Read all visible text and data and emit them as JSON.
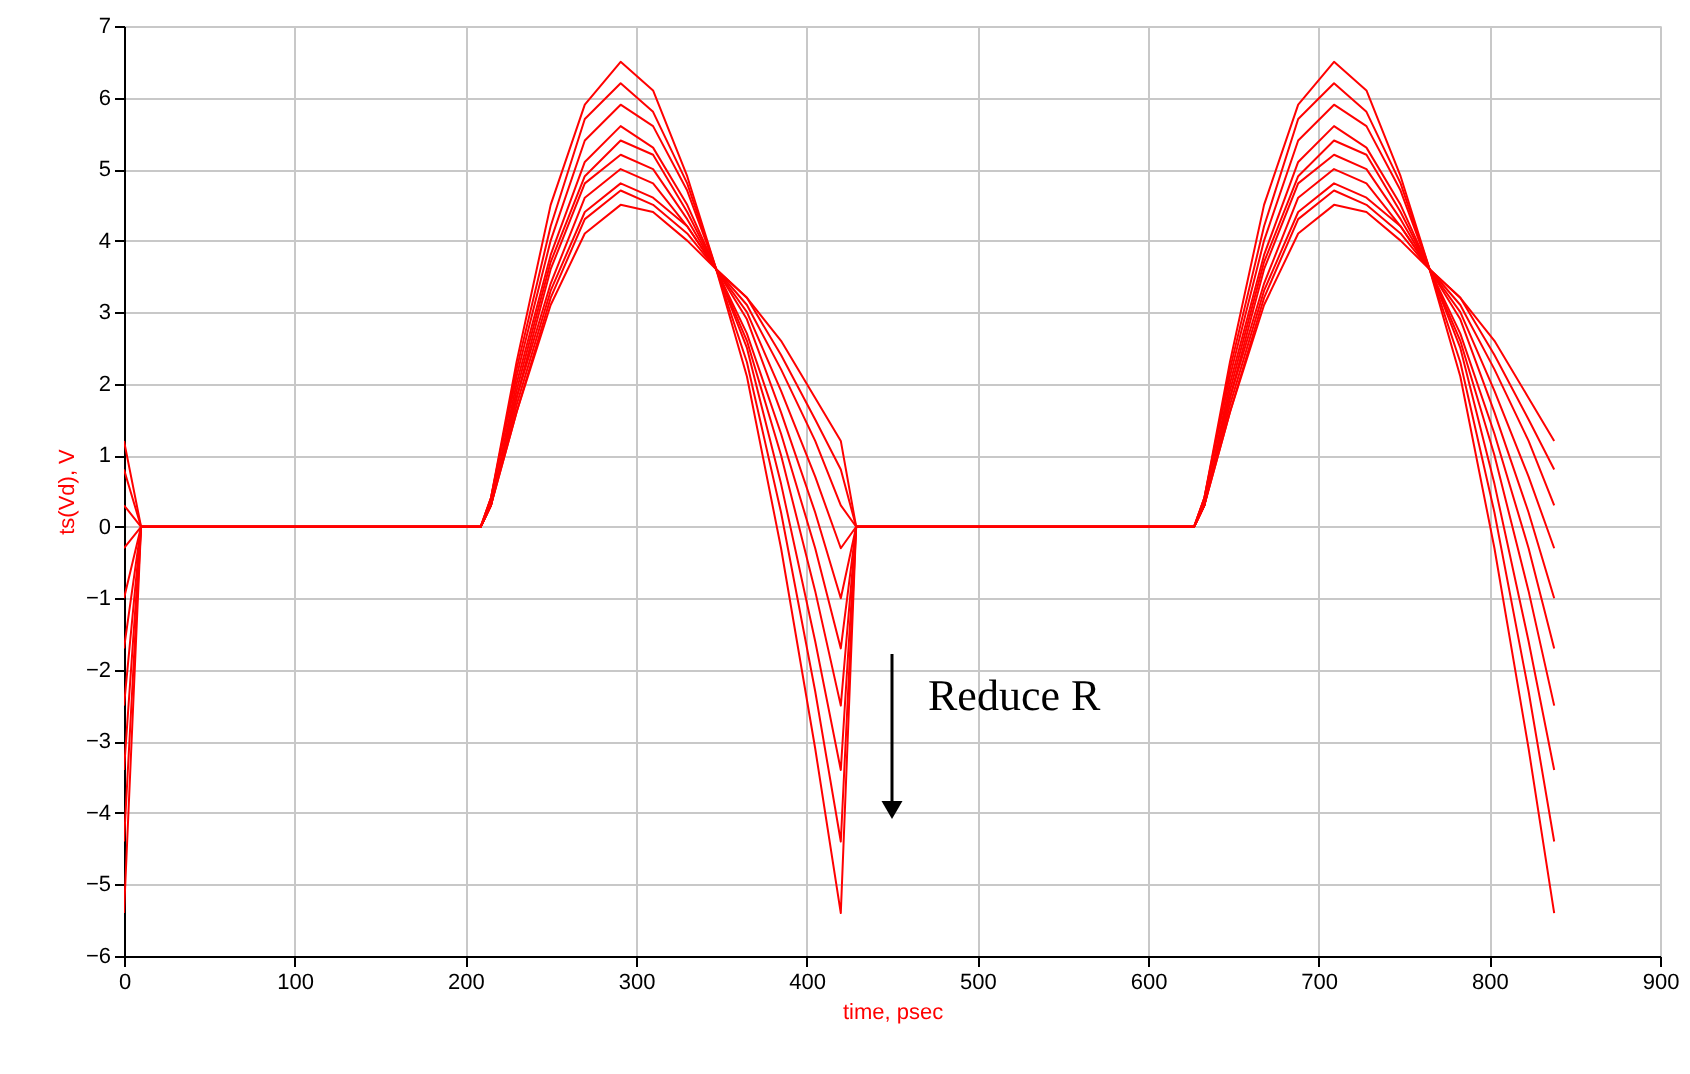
{
  "chart_data": {
    "type": "line",
    "xlabel": "time, psec",
    "ylabel": "ts(Vd), V",
    "annotations": [
      "Reduce R"
    ],
    "x": [
      0,
      10,
      209,
      215,
      230,
      250,
      270,
      291,
      310,
      330,
      347,
      365,
      385,
      405,
      420,
      429,
      627,
      633,
      648,
      668,
      688,
      709,
      728,
      748,
      765,
      783,
      803,
      823,
      838
    ],
    "xlim": [
      0,
      900
    ],
    "xticks": [
      0,
      100,
      200,
      300,
      400,
      500,
      600,
      700,
      800,
      900
    ],
    "ylim": [
      -6,
      7
    ],
    "yticks": [
      -6,
      -5,
      -4,
      -3,
      -2,
      -1,
      0,
      1,
      2,
      3,
      4,
      5,
      6,
      7
    ],
    "grid": true,
    "series": [
      {
        "color": "#ff0000",
        "values": [
          -5.4,
          0,
          0,
          0.4,
          2.3,
          4.5,
          5.9,
          6.5,
          6.1,
          4.9,
          3.6,
          2.1,
          -0.3,
          -3.1,
          -5.4,
          0,
          0,
          0.4,
          2.3,
          4.5,
          5.9,
          6.5,
          6.1,
          4.9,
          3.6,
          2.1,
          -0.3,
          -3.1,
          -5.4
        ]
      },
      {
        "color": "#ff0000",
        "values": [
          -4.4,
          0,
          0,
          0.4,
          2.2,
          4.2,
          5.7,
          6.2,
          5.8,
          4.8,
          3.6,
          2.3,
          0.2,
          -2.3,
          -4.4,
          0,
          0,
          0.4,
          2.2,
          4.2,
          5.7,
          6.2,
          5.8,
          4.8,
          3.6,
          2.3,
          0.2,
          -2.3,
          -4.4
        ]
      },
      {
        "color": "#ff0000",
        "values": [
          -3.4,
          0,
          0,
          0.4,
          2.1,
          4.0,
          5.4,
          5.9,
          5.6,
          4.7,
          3.6,
          2.5,
          0.6,
          -1.6,
          -3.4,
          0,
          0,
          0.4,
          2.1,
          4.0,
          5.4,
          5.9,
          5.6,
          4.7,
          3.6,
          2.5,
          0.6,
          -1.6,
          -3.4
        ]
      },
      {
        "color": "#ff0000",
        "values": [
          -2.5,
          0,
          0,
          0.3,
          2.0,
          3.8,
          5.1,
          5.6,
          5.3,
          4.5,
          3.6,
          2.6,
          1.0,
          -0.9,
          -2.5,
          0,
          0,
          0.3,
          2.0,
          3.8,
          5.1,
          5.6,
          5.3,
          4.5,
          3.6,
          2.6,
          1.0,
          -0.9,
          -2.5
        ]
      },
      {
        "color": "#ff0000",
        "values": [
          -1.7,
          0,
          0,
          0.3,
          1.9,
          3.7,
          4.9,
          5.4,
          5.2,
          4.4,
          3.6,
          2.7,
          1.3,
          -0.3,
          -1.7,
          0,
          0,
          0.3,
          1.9,
          3.7,
          4.9,
          5.4,
          5.2,
          4.4,
          3.6,
          2.7,
          1.3,
          -0.3,
          -1.7
        ]
      },
      {
        "color": "#ff0000",
        "values": [
          -1.0,
          0,
          0,
          0.3,
          1.8,
          3.6,
          4.8,
          5.2,
          5.0,
          4.3,
          3.6,
          2.9,
          1.6,
          0.2,
          -1.0,
          0,
          0,
          0.3,
          1.8,
          3.6,
          4.8,
          5.2,
          5.0,
          4.3,
          3.6,
          2.9,
          1.6,
          0.2,
          -1.0
        ]
      },
      {
        "color": "#ff0000",
        "values": [
          -0.3,
          0,
          0,
          0.3,
          1.8,
          3.4,
          4.6,
          5.0,
          4.8,
          4.2,
          3.6,
          3.0,
          1.9,
          0.7,
          -0.3,
          0,
          0,
          0.3,
          1.8,
          3.4,
          4.6,
          5.0,
          4.8,
          4.2,
          3.6,
          3.0,
          1.9,
          0.7,
          -0.3
        ]
      },
      {
        "color": "#ff0000",
        "values": [
          0.3,
          0,
          0,
          0.3,
          1.7,
          3.3,
          4.4,
          4.8,
          4.6,
          4.2,
          3.6,
          3.1,
          2.2,
          1.2,
          0.3,
          0,
          0,
          0.3,
          1.7,
          3.3,
          4.4,
          4.8,
          4.6,
          4.2,
          3.6,
          3.1,
          2.2,
          1.2,
          0.3
        ]
      },
      {
        "color": "#ff0000",
        "values": [
          0.8,
          0,
          0,
          0.3,
          1.6,
          3.2,
          4.3,
          4.7,
          4.5,
          4.1,
          3.6,
          3.2,
          2.4,
          1.5,
          0.8,
          0,
          0,
          0.3,
          1.6,
          3.2,
          4.3,
          4.7,
          4.5,
          4.1,
          3.6,
          3.2,
          2.4,
          1.5,
          0.8
        ]
      },
      {
        "color": "#ff0000",
        "values": [
          1.2,
          0,
          0,
          0.3,
          1.6,
          3.1,
          4.1,
          4.5,
          4.4,
          4.0,
          3.6,
          3.2,
          2.6,
          1.8,
          1.2,
          0,
          0,
          0.3,
          1.6,
          3.1,
          4.1,
          4.5,
          4.4,
          4.0,
          3.6,
          3.2,
          2.6,
          1.8,
          1.2
        ]
      }
    ]
  }
}
